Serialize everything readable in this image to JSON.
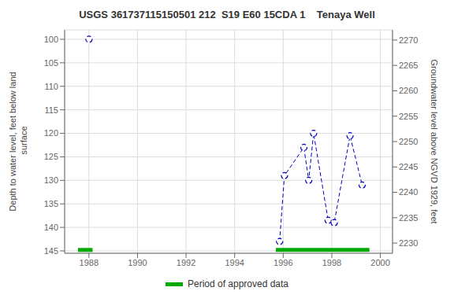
{
  "chart_data": {
    "type": "line",
    "title": "USGS 361737115150501 212  S19 E60 15CDA 1    Tenaya Well",
    "y_label": "Depth to water level, feet below land\n surface",
    "y2_label": "Groundwater level above NGVD 1929, feet",
    "xlim": [
      1987.0,
      2000.5
    ],
    "xticks": [
      1988,
      1990,
      1992,
      1994,
      1996,
      1998,
      2000
    ],
    "ylim": [
      145.5,
      98.0
    ],
    "yticks": [
      100,
      105,
      110,
      115,
      120,
      125,
      130,
      135,
      140,
      145
    ],
    "y2lim": [
      2228.0,
      2272.0
    ],
    "y2ticks": [
      2230,
      2235,
      2240,
      2245,
      2250,
      2255,
      2260,
      2265,
      2270
    ],
    "grid": true,
    "legend": "bottom",
    "series": [
      {
        "type": "line",
        "color": "#0000bb",
        "marker": "open_circle",
        "line_style": "dashed",
        "x": [
          1988.0
        ],
        "values": [
          100.0
        ]
      },
      {
        "type": "line",
        "color": "#0000bb",
        "marker": "open_circle",
        "line_style": "dashed",
        "x": [
          1995.85,
          1996.05,
          1996.85,
          1997.05,
          1997.25,
          1997.85,
          1998.1,
          1998.75,
          1999.25
        ],
        "values": [
          143.0,
          129.0,
          123.0,
          130.0,
          120.0,
          138.5,
          139.0,
          120.5,
          131.0
        ]
      },
      {
        "name": "Period of approved data",
        "type": "period",
        "color": "#00aa00",
        "line_style": "solid",
        "periods": [
          [
            1987.55,
            1988.15
          ],
          [
            1995.7,
            1999.55
          ]
        ],
        "values": [
          144.8,
          144.8
        ]
      }
    ]
  }
}
